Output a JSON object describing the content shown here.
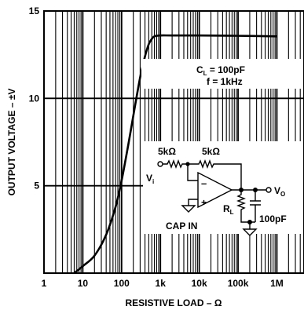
{
  "chart_data": {
    "type": "line",
    "xlabel": "RESISTIVE LOAD – Ω",
    "ylabel": "OUTPUT VOLTAGE – ±V",
    "x_scale": "log",
    "xlim": [
      1,
      5000000
    ],
    "ylim": [
      0,
      15
    ],
    "x_ticks": [
      {
        "value": 1,
        "label": "1"
      },
      {
        "value": 10,
        "label": "10"
      },
      {
        "value": 100,
        "label": "100"
      },
      {
        "value": 1000,
        "label": "1k"
      },
      {
        "value": 10000,
        "label": "10k"
      },
      {
        "value": 100000,
        "label": "100k"
      },
      {
        "value": 1000000,
        "label": "1M"
      }
    ],
    "y_ticks": [
      {
        "value": 5,
        "label": "5"
      },
      {
        "value": 10,
        "label": "10"
      },
      {
        "value": 15,
        "label": "15"
      }
    ],
    "grid": true,
    "series": [
      {
        "x": [
          6,
          10,
          20,
          40,
          70,
          100,
          150,
          200,
          300,
          400,
          500,
          600,
          700,
          1000,
          2000,
          10000,
          100000,
          1000000
        ],
        "y": [
          0.0,
          0.4,
          1.0,
          2.2,
          3.8,
          5.3,
          7.4,
          9.0,
          11.2,
          12.4,
          13.1,
          13.4,
          13.55,
          13.6,
          13.6,
          13.6,
          13.58,
          13.55
        ]
      }
    ],
    "annotations": {
      "cl": "C",
      "cl_sub": "L",
      "cl_value": " = 100pF",
      "freq": "f = 1kHz"
    },
    "circuit": {
      "r_in": "5kΩ",
      "r_fb": "5kΩ",
      "input": "V",
      "input_sub": "i",
      "output": "V",
      "output_sub": "O",
      "load": "R",
      "load_sub": "L",
      "cap": "100pF",
      "cap_in": "CAP IN",
      "minus": "–",
      "plus": "+"
    }
  }
}
